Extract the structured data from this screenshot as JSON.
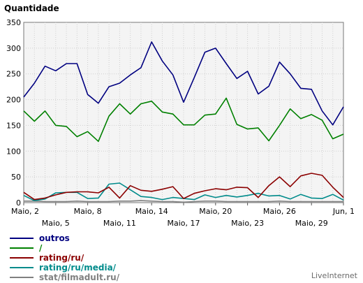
{
  "chart_data": {
    "type": "line",
    "title": "Quantidade",
    "ylabel": "Quantidade",
    "xlabel": "",
    "ylim": [
      0,
      350
    ],
    "yticks": [
      0,
      50,
      100,
      150,
      200,
      250,
      300,
      350
    ],
    "grid": true,
    "legend_position": "bottom-left",
    "x": [
      "Maio, 2",
      "Maio, 3",
      "Maio, 4",
      "Maio, 5",
      "Maio, 6",
      "Maio, 7",
      "Maio, 8",
      "Maio, 9",
      "Maio, 10",
      "Maio, 11",
      "Maio, 12",
      "Maio, 13",
      "Maio, 14",
      "Maio, 15",
      "Maio, 16",
      "Maio, 17",
      "Maio, 18",
      "Maio, 19",
      "Maio, 20",
      "Maio, 21",
      "Maio, 22",
      "Maio, 23",
      "Maio, 24",
      "Maio, 25",
      "Maio, 26",
      "Maio, 27",
      "Maio, 28",
      "Maio, 29",
      "Maio, 30",
      "Maio, 31",
      "Jun, 1"
    ],
    "xtick_labels": [
      {
        "label": "Maio, 2",
        "index": 0,
        "row": 1
      },
      {
        "label": "Maio, 5",
        "index": 3,
        "row": 2
      },
      {
        "label": "Maio, 8",
        "index": 6,
        "row": 1
      },
      {
        "label": "Maio, 11",
        "index": 9,
        "row": 2
      },
      {
        "label": "Maio, 14",
        "index": 12,
        "row": 1
      },
      {
        "label": "Maio, 17",
        "index": 15,
        "row": 2
      },
      {
        "label": "Maio, 20",
        "index": 18,
        "row": 1
      },
      {
        "label": "Maio, 23",
        "index": 21,
        "row": 2
      },
      {
        "label": "Maio, 26",
        "index": 24,
        "row": 1
      },
      {
        "label": "Maio, 29",
        "index": 27,
        "row": 2
      },
      {
        "label": "Jun, 1",
        "index": 30,
        "row": 1
      }
    ],
    "series": [
      {
        "name": "outros",
        "color": "#000080",
        "values": [
          205,
          232,
          265,
          256,
          270,
          270,
          210,
          193,
          225,
          232,
          248,
          262,
          312,
          275,
          248,
          195,
          243,
          292,
          300,
          270,
          241,
          255,
          211,
          226,
          273,
          250,
          222,
          220,
          178,
          151,
          186
        ]
      },
      {
        "name": "/",
        "color": "#008000",
        "values": [
          178,
          158,
          178,
          150,
          148,
          128,
          138,
          119,
          168,
          192,
          172,
          192,
          197,
          176,
          172,
          151,
          151,
          170,
          172,
          203,
          152,
          143,
          145,
          120,
          150,
          182,
          163,
          171,
          160,
          124,
          133
        ]
      },
      {
        "name": "rating/ru/",
        "color": "#8b0000",
        "values": [
          20,
          6,
          9,
          15,
          20,
          21,
          21,
          19,
          30,
          9,
          33,
          24,
          22,
          26,
          31,
          8,
          18,
          23,
          27,
          25,
          30,
          29,
          10,
          33,
          50,
          31,
          52,
          57,
          53,
          30,
          10
        ]
      },
      {
        "name": "rating/ru/media/",
        "color": "#008b8b",
        "values": [
          14,
          4,
          7,
          19,
          20,
          20,
          8,
          9,
          36,
          38,
          25,
          12,
          10,
          6,
          10,
          8,
          6,
          15,
          10,
          14,
          11,
          14,
          18,
          13,
          14,
          7,
          16,
          9,
          8,
          16,
          5
        ]
      },
      {
        "name": "stat/filmadult.ru/",
        "color": "#808080",
        "values": [
          3,
          3,
          2,
          2,
          2,
          3,
          2,
          2,
          2,
          3,
          3,
          4,
          3,
          2,
          2,
          1,
          2,
          3,
          3,
          2,
          2,
          2,
          2,
          2,
          3,
          2,
          2,
          2,
          2,
          2,
          2
        ]
      }
    ]
  },
  "watermark": "LiveInternet"
}
